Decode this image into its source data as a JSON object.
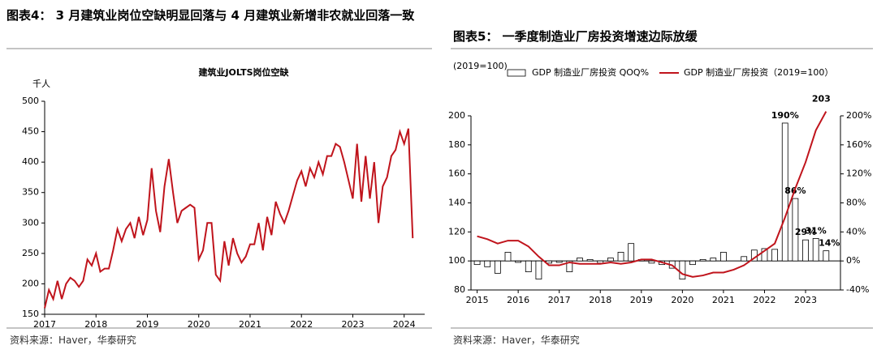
{
  "left": {
    "heading": "图表4： 3 月建筑业岗位空缺明显回落与 4 月建筑业新增非农就业回落一致",
    "source": "资料来源：Haver，华泰研究"
  },
  "right": {
    "heading": "图表5： 一季度制造业厂房投资增速边际放缓",
    "source": "资料来源：Haver，华泰研究"
  },
  "chart_data": [
    {
      "type": "line",
      "title": "建筑业JOLTS岗位空缺",
      "y_label": "千人",
      "color": "#c0141c",
      "x": [
        2017,
        2017.083,
        2017.167,
        2017.25,
        2017.333,
        2017.417,
        2017.5,
        2017.583,
        2017.667,
        2017.75,
        2017.833,
        2017.917,
        2018,
        2018.083,
        2018.167,
        2018.25,
        2018.333,
        2018.417,
        2018.5,
        2018.583,
        2018.667,
        2018.75,
        2018.833,
        2018.917,
        2019,
        2019.083,
        2019.167,
        2019.25,
        2019.333,
        2019.417,
        2019.5,
        2019.583,
        2019.667,
        2019.75,
        2019.833,
        2019.917,
        2020,
        2020.083,
        2020.167,
        2020.25,
        2020.333,
        2020.417,
        2020.5,
        2020.583,
        2020.667,
        2020.75,
        2020.833,
        2020.917,
        2021,
        2021.083,
        2021.167,
        2021.25,
        2021.333,
        2021.417,
        2021.5,
        2021.583,
        2021.667,
        2021.75,
        2021.833,
        2021.917,
        2022,
        2022.083,
        2022.167,
        2022.25,
        2022.333,
        2022.417,
        2022.5,
        2022.583,
        2022.667,
        2022.75,
        2022.833,
        2022.917,
        2023,
        2023.083,
        2023.167,
        2023.25,
        2023.333,
        2023.417,
        2023.5,
        2023.583,
        2023.667,
        2023.75,
        2023.833,
        2023.917,
        2024,
        2024.083,
        2024.167
      ],
      "values": [
        160,
        190,
        175,
        205,
        175,
        200,
        210,
        205,
        195,
        205,
        240,
        230,
        250,
        220,
        225,
        225,
        255,
        290,
        270,
        290,
        300,
        275,
        310,
        280,
        305,
        390,
        320,
        285,
        360,
        405,
        350,
        300,
        320,
        325,
        330,
        325,
        240,
        255,
        300,
        300,
        215,
        205,
        270,
        230,
        275,
        250,
        235,
        245,
        265,
        265,
        300,
        255,
        310,
        280,
        335,
        315,
        300,
        320,
        345,
        370,
        385,
        360,
        390,
        375,
        400,
        380,
        410,
        410,
        430,
        425,
        400,
        370,
        340,
        430,
        335,
        410,
        340,
        400,
        300,
        360,
        375,
        410,
        420,
        450,
        430,
        455,
        275
      ],
      "xlim": [
        2017,
        2024.4
      ],
      "xticks": [
        2017,
        2018,
        2019,
        2020,
        2021,
        2022,
        2023,
        2024
      ],
      "ylim": [
        150,
        500
      ],
      "yticks": [
        150,
        200,
        250,
        300,
        350,
        400,
        450,
        500
      ]
    },
    {
      "type": "combo",
      "y_label": "(2019=100)",
      "x": [
        2015,
        2015.25,
        2015.5,
        2015.75,
        2016,
        2016.25,
        2016.5,
        2016.75,
        2017,
        2017.25,
        2017.5,
        2017.75,
        2018,
        2018.25,
        2018.5,
        2018.75,
        2019,
        2019.25,
        2019.5,
        2019.75,
        2020,
        2020.25,
        2020.5,
        2020.75,
        2021,
        2021.25,
        2021.5,
        2021.75,
        2022,
        2022.25,
        2022.5,
        2022.75,
        2023,
        2023.25,
        2023.5
      ],
      "series": [
        {
          "name": "GDP 制造业厂房投资 QOQ%",
          "type": "bar",
          "axis": "y2",
          "color": "#ffffff",
          "values": [
            -5,
            -8,
            -17,
            12,
            -2,
            -15,
            -25,
            -3,
            -2,
            -15,
            4,
            2,
            -3,
            4,
            12,
            24,
            2,
            -3,
            -5,
            -10,
            -25,
            -5,
            2,
            4,
            12,
            0,
            6,
            15,
            17,
            16,
            190,
            86,
            29,
            31,
            14
          ],
          "value_labels": [
            null,
            null,
            null,
            null,
            null,
            null,
            null,
            null,
            null,
            null,
            null,
            null,
            null,
            null,
            null,
            null,
            null,
            null,
            null,
            null,
            null,
            null,
            null,
            null,
            null,
            null,
            null,
            null,
            null,
            null,
            "190%",
            "86%",
            "29%",
            "31%",
            "14%"
          ]
        },
        {
          "name": "GDP 制造业厂房投资（2019=100）",
          "type": "line",
          "color": "#c0141c",
          "values": [
            117,
            115,
            112,
            114,
            114,
            110,
            103,
            97,
            97,
            99,
            98,
            98,
            98,
            99,
            98,
            99,
            101,
            101,
            99,
            97,
            91,
            89,
            90,
            92,
            92,
            94,
            97,
            102,
            107,
            112,
            130,
            150,
            168,
            190,
            203
          ],
          "value_labels": [
            null,
            null,
            null,
            null,
            null,
            null,
            null,
            null,
            null,
            null,
            null,
            null,
            null,
            null,
            null,
            null,
            null,
            null,
            null,
            null,
            null,
            null,
            null,
            null,
            null,
            null,
            null,
            null,
            null,
            null,
            null,
            null,
            null,
            null,
            "203"
          ]
        }
      ],
      "xlim": [
        2014.85,
        2023.85
      ],
      "xticks": [
        2015,
        2016,
        2017,
        2018,
        2019,
        2020,
        2021,
        2022,
        2023
      ],
      "ylim": [
        80,
        200
      ],
      "yticks": [
        80,
        100,
        120,
        140,
        160,
        180,
        200
      ],
      "y2lim": [
        -40,
        200
      ],
      "y2ticks": [
        {
          "value": -40,
          "label": "-40%"
        },
        {
          "value": 0,
          "label": "0%"
        },
        {
          "value": 40,
          "label": "40%"
        },
        {
          "value": 80,
          "label": "80%"
        },
        {
          "value": 120,
          "label": "120%"
        },
        {
          "value": 160,
          "label": "160%"
        },
        {
          "value": 200,
          "label": "200%"
        }
      ]
    }
  ]
}
